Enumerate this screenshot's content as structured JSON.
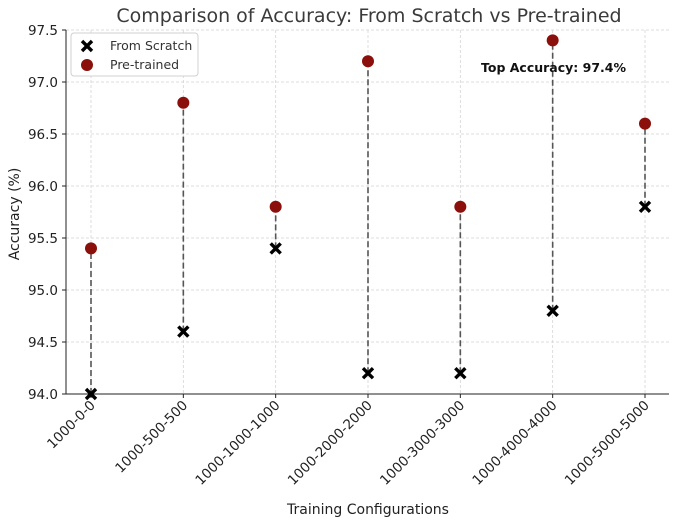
{
  "chart_data": {
    "type": "scatter",
    "title": "Comparison of Accuracy: From Scratch vs Pre-trained",
    "xlabel": "Training Configurations",
    "ylabel": "Accuracy (%)",
    "categories": [
      "1000-0-0",
      "1000-500-500",
      "1000-1000-1000",
      "1000-2000-2000",
      "1000-3000-3000",
      "1000-4000-4000",
      "1000-5000-5000"
    ],
    "ylim": [
      94.0,
      97.5
    ],
    "yticks": [
      "94.0",
      "94.5",
      "95.0",
      "95.5",
      "96.0",
      "96.5",
      "97.0",
      "97.5"
    ],
    "grid": true,
    "legend_position": "top-left",
    "series": [
      {
        "name": "From Scratch",
        "marker": "x",
        "color": "#000000",
        "values": [
          94.0,
          94.6,
          95.4,
          94.2,
          94.2,
          94.8,
          95.8
        ]
      },
      {
        "name": "Pre-trained",
        "marker": "circle",
        "color": "#8b0f0a",
        "values": [
          95.4,
          96.8,
          95.8,
          97.2,
          95.8,
          97.4,
          96.6
        ]
      }
    ],
    "connector_style": "dashed",
    "connector_color": "#555555",
    "annotation": "Top Accuracy: 97.4%"
  }
}
